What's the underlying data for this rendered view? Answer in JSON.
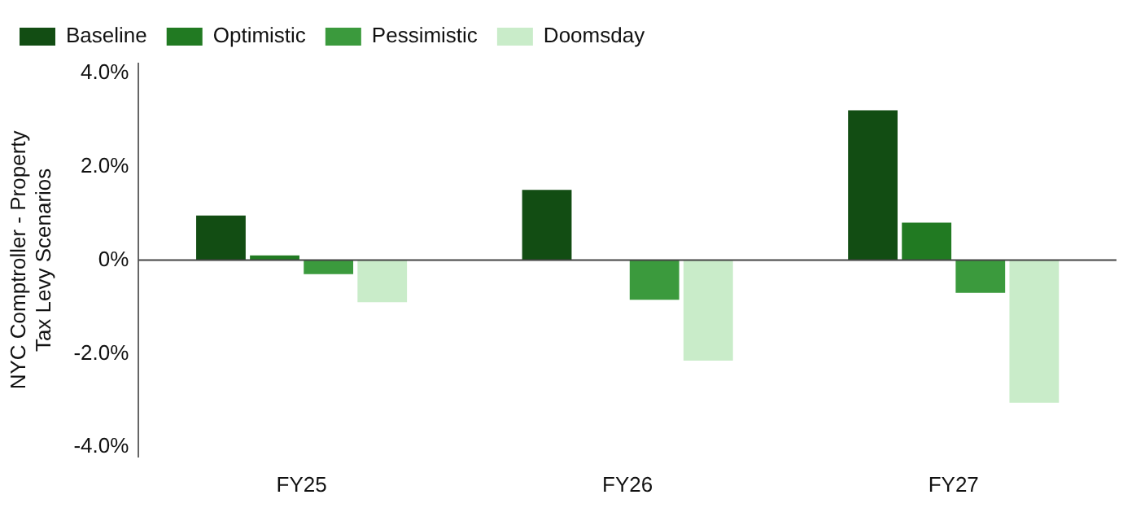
{
  "chart_data": {
    "type": "bar",
    "ylabel": "NYC Comptroller - Property Tax Levy Scenarios",
    "categories": [
      "FY25",
      "FY26",
      "FY27"
    ],
    "series": [
      {
        "name": "Baseline",
        "color": "#124d13",
        "values": [
          0.95,
          1.5,
          3.2
        ]
      },
      {
        "name": "Optimistic",
        "color": "#217a22",
        "values": [
          0.1,
          null,
          0.8
        ]
      },
      {
        "name": "Pessimistic",
        "color": "#3b9a3d",
        "values": [
          -0.3,
          -0.85,
          -0.7
        ]
      },
      {
        "name": "Doomsday",
        "color": "#c9ecc9",
        "values": [
          -0.9,
          -2.15,
          -3.05
        ]
      }
    ],
    "ylim": [
      -4.2,
      4.2
    ],
    "yticks": [
      {
        "value": 4,
        "label": "4.0%"
      },
      {
        "value": 2,
        "label": "2.0%"
      },
      {
        "value": 0,
        "label": "0%"
      },
      {
        "value": -2,
        "label": "-2.0%"
      },
      {
        "value": -4,
        "label": "-4.0%"
      }
    ],
    "ref_lines": [
      {
        "axis": "y",
        "value": 0,
        "color": "#444444"
      }
    ],
    "grid": false,
    "legend": "top left"
  }
}
